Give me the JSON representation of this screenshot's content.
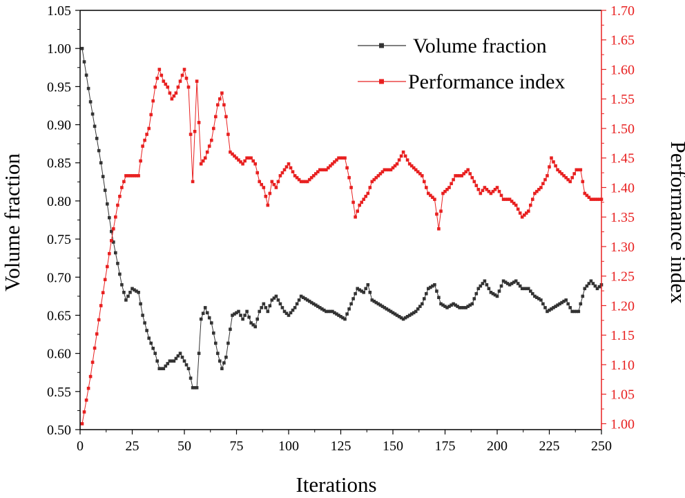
{
  "chart_data": {
    "type": "line",
    "xlabel": "Iterations",
    "ylabel_left": "Volume fraction",
    "ylabel_right": "Performance index",
    "xlim": [
      0,
      250
    ],
    "ylim_left": [
      0.5,
      1.05
    ],
    "ylim_right": [
      0.99,
      1.7
    ],
    "x_ticks": [
      0,
      25,
      50,
      75,
      100,
      125,
      150,
      175,
      200,
      225,
      250
    ],
    "x_tick_labels": [
      "0",
      "25",
      "50",
      "75",
      "100",
      "125",
      "150",
      "175",
      "200",
      "225",
      "250"
    ],
    "y_left_ticks": [
      0.5,
      0.55,
      0.6,
      0.65,
      0.7,
      0.75,
      0.8,
      0.85,
      0.9,
      0.95,
      1.0,
      1.05
    ],
    "y_left_tick_labels": [
      "0.50",
      "0.55",
      "0.60",
      "0.65",
      "0.70",
      "0.75",
      "0.80",
      "0.85",
      "0.90",
      "0.95",
      "1.00",
      "1.05"
    ],
    "y_right_ticks": [
      1.0,
      1.05,
      1.1,
      1.15,
      1.2,
      1.25,
      1.3,
      1.35,
      1.4,
      1.45,
      1.5,
      1.55,
      1.6,
      1.65,
      1.7
    ],
    "y_right_tick_labels": [
      "1.00",
      "1.05",
      "1.10",
      "1.15",
      "1.20",
      "1.25",
      "1.30",
      "1.35",
      "1.40",
      "1.45",
      "1.50",
      "1.55",
      "1.60",
      "1.65",
      "1.70"
    ],
    "legend_position": "top-right",
    "series": [
      {
        "name": "Volume fraction",
        "axis": "left",
        "color": "#333333",
        "x": [
          1,
          5,
          10,
          15,
          20,
          22,
          25,
          28,
          30,
          33,
          36,
          38,
          40,
          43,
          45,
          48,
          50,
          52,
          54,
          56,
          58,
          60,
          63,
          66,
          68,
          70,
          73,
          76,
          78,
          80,
          82,
          84,
          86,
          88,
          90,
          92,
          94,
          96,
          98,
          100,
          103,
          106,
          109,
          112,
          115,
          118,
          121,
          124,
          127,
          130,
          133,
          136,
          138,
          140,
          143,
          146,
          149,
          152,
          155,
          158,
          161,
          164,
          167,
          170,
          173,
          176,
          179,
          182,
          185,
          188,
          191,
          194,
          197,
          200,
          203,
          206,
          209,
          212,
          215,
          218,
          221,
          224,
          227,
          230,
          233,
          236,
          239,
          242,
          245,
          248,
          250
        ],
        "values": [
          1.0,
          0.93,
          0.85,
          0.76,
          0.69,
          0.67,
          0.685,
          0.68,
          0.65,
          0.62,
          0.6,
          0.58,
          0.58,
          0.59,
          0.59,
          0.6,
          0.59,
          0.58,
          0.555,
          0.555,
          0.645,
          0.66,
          0.64,
          0.6,
          0.58,
          0.595,
          0.65,
          0.655,
          0.645,
          0.655,
          0.64,
          0.635,
          0.655,
          0.665,
          0.655,
          0.67,
          0.675,
          0.665,
          0.655,
          0.65,
          0.66,
          0.675,
          0.67,
          0.665,
          0.66,
          0.655,
          0.655,
          0.65,
          0.645,
          0.665,
          0.685,
          0.68,
          0.69,
          0.67,
          0.665,
          0.66,
          0.655,
          0.65,
          0.645,
          0.65,
          0.655,
          0.665,
          0.685,
          0.69,
          0.665,
          0.66,
          0.665,
          0.66,
          0.66,
          0.665,
          0.685,
          0.695,
          0.68,
          0.675,
          0.695,
          0.69,
          0.695,
          0.685,
          0.685,
          0.675,
          0.67,
          0.655,
          0.66,
          0.665,
          0.67,
          0.655,
          0.655,
          0.685,
          0.695,
          0.685,
          0.69
        ]
      },
      {
        "name": "Performance index",
        "axis": "right",
        "color": "#e82020",
        "x": [
          1,
          5,
          10,
          15,
          18,
          20,
          22,
          25,
          28,
          30,
          33,
          36,
          38,
          40,
          42,
          44,
          46,
          48,
          50,
          52,
          54,
          56,
          58,
          60,
          63,
          66,
          68,
          70,
          72,
          75,
          78,
          80,
          82,
          84,
          86,
          88,
          90,
          92,
          94,
          96,
          98,
          100,
          103,
          106,
          109,
          112,
          115,
          118,
          121,
          124,
          127,
          130,
          132,
          134,
          136,
          138,
          140,
          143,
          146,
          149,
          152,
          155,
          158,
          161,
          164,
          167,
          170,
          172,
          174,
          177,
          180,
          183,
          186,
          189,
          192,
          194,
          197,
          200,
          203,
          206,
          209,
          212,
          215,
          218,
          221,
          224,
          226,
          229,
          232,
          235,
          238,
          240,
          242,
          245,
          248,
          250
        ],
        "values": [
          1.0,
          1.08,
          1.2,
          1.31,
          1.37,
          1.4,
          1.42,
          1.42,
          1.42,
          1.47,
          1.5,
          1.57,
          1.6,
          1.58,
          1.57,
          1.55,
          1.56,
          1.58,
          1.6,
          1.57,
          1.41,
          1.58,
          1.44,
          1.45,
          1.48,
          1.54,
          1.56,
          1.52,
          1.46,
          1.45,
          1.44,
          1.45,
          1.45,
          1.44,
          1.41,
          1.4,
          1.37,
          1.41,
          1.4,
          1.42,
          1.43,
          1.44,
          1.42,
          1.41,
          1.41,
          1.42,
          1.43,
          1.43,
          1.44,
          1.45,
          1.45,
          1.4,
          1.35,
          1.37,
          1.38,
          1.39,
          1.41,
          1.42,
          1.43,
          1.43,
          1.44,
          1.46,
          1.44,
          1.43,
          1.42,
          1.39,
          1.38,
          1.33,
          1.39,
          1.4,
          1.42,
          1.42,
          1.43,
          1.41,
          1.39,
          1.4,
          1.39,
          1.4,
          1.38,
          1.38,
          1.37,
          1.35,
          1.36,
          1.39,
          1.4,
          1.42,
          1.45,
          1.43,
          1.42,
          1.41,
          1.43,
          1.43,
          1.39,
          1.38,
          1.38,
          1.38
        ]
      }
    ]
  }
}
